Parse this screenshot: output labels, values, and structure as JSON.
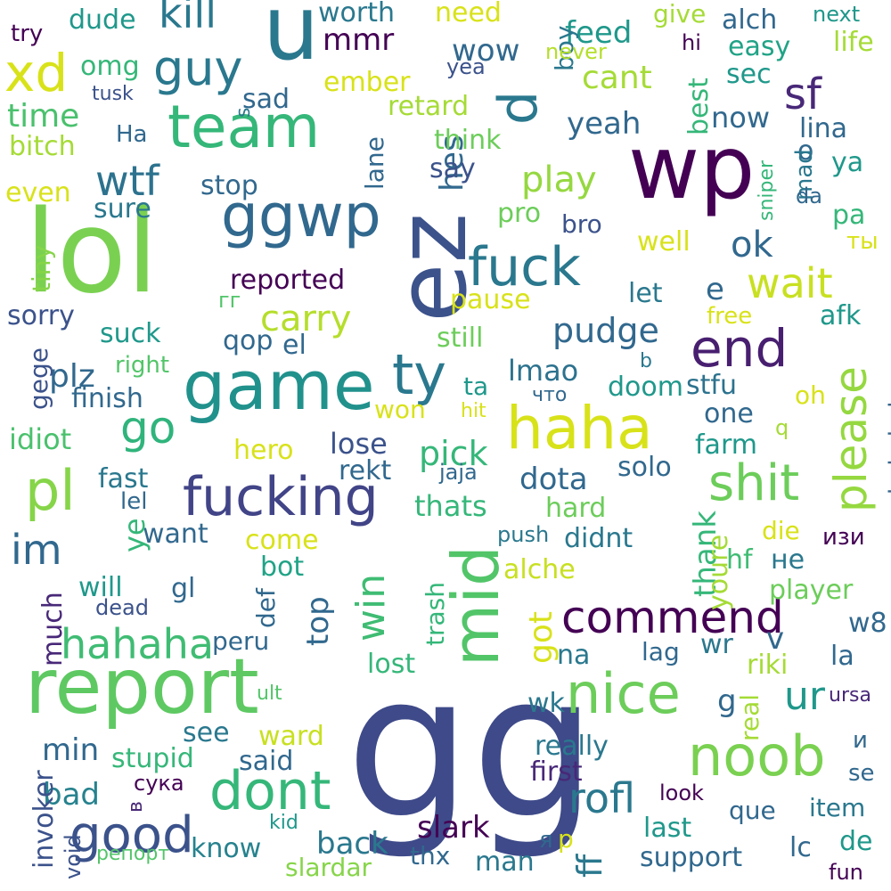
{
  "words": [
    {
      "text": "gg",
      "color": "#3e4a89",
      "vertical": false
    },
    {
      "text": "lol",
      "color": "#7ad151",
      "vertical": false
    },
    {
      "text": "wp",
      "color": "#440154",
      "vertical": false
    },
    {
      "text": "ez",
      "color": "#3b528b",
      "vertical": true
    },
    {
      "text": "report",
      "color": "#5ec962",
      "vertical": false
    },
    {
      "text": "game",
      "color": "#21918c",
      "vertical": false
    },
    {
      "text": "u",
      "color": "#2a788e",
      "vertical": false
    },
    {
      "text": "ggwp",
      "color": "#31688e",
      "vertical": false
    },
    {
      "text": "team",
      "color": "#35b779",
      "vertical": false
    },
    {
      "text": "haha",
      "color": "#d8e219",
      "vertical": false
    },
    {
      "text": "mid",
      "color": "#52c569",
      "vertical": true
    },
    {
      "text": "fucking",
      "color": "#414487",
      "vertical": false
    },
    {
      "text": "noob",
      "color": "#7ad151",
      "vertical": false
    },
    {
      "text": "nice",
      "color": "#6ccd5a",
      "vertical": false
    },
    {
      "text": "fuck",
      "color": "#2a788e",
      "vertical": false
    },
    {
      "text": "commend",
      "color": "#440154",
      "vertical": false
    },
    {
      "text": "ty",
      "color": "#2a788e",
      "vertical": false
    },
    {
      "text": "xd",
      "color": "#d8e219",
      "vertical": false
    },
    {
      "text": "pl",
      "color": "#86d549",
      "vertical": false
    },
    {
      "text": "end",
      "color": "#481f70",
      "vertical": false
    },
    {
      "text": "d",
      "color": "#2a788e",
      "vertical": true
    },
    {
      "text": "dont",
      "color": "#35b779",
      "vertical": false
    },
    {
      "text": "good",
      "color": "#3b528b",
      "vertical": false
    },
    {
      "text": "shit",
      "color": "#6ccd5a",
      "vertical": false
    },
    {
      "text": "please",
      "color": "#95d840",
      "vertical": true
    },
    {
      "text": "guy",
      "color": "#2a788e",
      "vertical": false
    },
    {
      "text": "go",
      "color": "#2fb47c",
      "vertical": false
    },
    {
      "text": "sf",
      "color": "#482878",
      "vertical": false
    },
    {
      "text": "wtf",
      "color": "#2c728e",
      "vertical": false
    },
    {
      "text": "im",
      "color": "#31688e",
      "vertical": false
    },
    {
      "text": "rofl",
      "color": "#2a788e",
      "vertical": false
    },
    {
      "text": "wait",
      "color": "#c8e020",
      "vertical": false
    },
    {
      "text": "hahaha",
      "color": "#3fbc73",
      "vertical": false
    },
    {
      "text": "kill",
      "color": "#2a788e",
      "vertical": false
    },
    {
      "text": "win",
      "color": "#3fbc73",
      "vertical": true
    },
    {
      "text": "carry",
      "color": "#b5de2b",
      "vertical": false
    },
    {
      "text": "pick",
      "color": "#35b779",
      "vertical": false
    },
    {
      "text": "play",
      "color": "#95d840",
      "vertical": false
    },
    {
      "text": "ur",
      "color": "#1f988b",
      "vertical": false
    },
    {
      "text": "ok",
      "color": "#31688e",
      "vertical": false
    },
    {
      "text": "pudge",
      "color": "#31688e",
      "vertical": false
    },
    {
      "text": "plz",
      "color": "#31688e",
      "vertical": false
    },
    {
      "text": "dota",
      "color": "#31688e",
      "vertical": false
    },
    {
      "text": "cant",
      "color": "#a5db36",
      "vertical": false
    },
    {
      "text": "time",
      "color": "#4ac16d",
      "vertical": false
    },
    {
      "text": "feed",
      "color": "#1f988b",
      "vertical": false
    },
    {
      "text": "ff",
      "color": "#2a788e",
      "vertical": true
    },
    {
      "text": "back",
      "color": "#2a788e",
      "vertical": false
    },
    {
      "text": "slark",
      "color": "#440154",
      "vertical": false
    },
    {
      "text": "yeah",
      "color": "#31688e",
      "vertical": false
    },
    {
      "text": "mmr",
      "color": "#440154",
      "vertical": false
    },
    {
      "text": "now",
      "color": "#31688e",
      "vertical": false
    },
    {
      "text": "lose",
      "color": "#3b528b",
      "vertical": false
    },
    {
      "text": "lmao",
      "color": "#2c728e",
      "vertical": false
    },
    {
      "text": "idiot",
      "color": "#4ac16d",
      "vertical": false
    },
    {
      "text": "got",
      "color": "#d8e219",
      "vertical": true
    },
    {
      "text": "min",
      "color": "#31688e",
      "vertical": false
    },
    {
      "text": "know",
      "color": "#26828e",
      "vertical": false
    },
    {
      "text": "bad",
      "color": "#26828e",
      "vertical": false
    },
    {
      "text": "support",
      "color": "#31688e",
      "vertical": false
    },
    {
      "text": "thats",
      "color": "#35b779",
      "vertical": false
    },
    {
      "text": "stfu",
      "color": "#2c728e",
      "vertical": false
    },
    {
      "text": "wow",
      "color": "#31688e",
      "vertical": false
    },
    {
      "text": "e",
      "color": "#31688e",
      "vertical": false
    },
    {
      "text": "v",
      "color": "#31688e",
      "vertical": false
    },
    {
      "text": "g",
      "color": "#31688e",
      "vertical": false
    },
    {
      "text": "dude",
      "color": "#1f988b",
      "vertical": false
    },
    {
      "text": "reported",
      "color": "#440154",
      "vertical": false
    },
    {
      "text": "top",
      "color": "#31688e",
      "vertical": true
    },
    {
      "text": "farm",
      "color": "#1f988b",
      "vertical": false
    },
    {
      "text": "easy",
      "color": "#20a386",
      "vertical": false
    },
    {
      "text": "alch",
      "color": "#31688e",
      "vertical": false
    },
    {
      "text": "sorry",
      "color": "#3b528b",
      "vertical": false
    },
    {
      "text": "suck",
      "color": "#1f988b",
      "vertical": false
    },
    {
      "text": "retard",
      "color": "#a5db36",
      "vertical": false
    },
    {
      "text": "stop",
      "color": "#31688e",
      "vertical": false
    },
    {
      "text": "come",
      "color": "#d8e219",
      "vertical": false
    },
    {
      "text": "want",
      "color": "#31688e",
      "vertical": false
    },
    {
      "text": "sad",
      "color": "#31688e",
      "vertical": false
    },
    {
      "text": "worth",
      "color": "#2a788e",
      "vertical": false
    },
    {
      "text": "need",
      "color": "#d8e219",
      "vertical": false
    },
    {
      "text": "ember",
      "color": "#d8e219",
      "vertical": false
    },
    {
      "text": "omg",
      "color": "#35b779",
      "vertical": false
    },
    {
      "text": "bitch",
      "color": "#a5db36",
      "vertical": false
    },
    {
      "text": "even",
      "color": "#d8e219",
      "vertical": false
    },
    {
      "text": "sure",
      "color": "#2a788e",
      "vertical": false
    },
    {
      "text": "hes",
      "color": "#31688e",
      "vertical": true
    },
    {
      "text": "think",
      "color": "#6ccd5a",
      "vertical": false
    },
    {
      "text": "say",
      "color": "#3b528b",
      "vertical": false
    },
    {
      "text": "pro",
      "color": "#6ccd5a",
      "vertical": false
    },
    {
      "text": "bro",
      "color": "#3b528b",
      "vertical": false
    },
    {
      "text": "well",
      "color": "#d8e219",
      "vertical": false
    },
    {
      "text": "let",
      "color": "#2a788e",
      "vertical": false
    },
    {
      "text": "afk",
      "color": "#1f988b",
      "vertical": false
    },
    {
      "text": "pause",
      "color": "#d8e219",
      "vertical": false
    },
    {
      "text": "still",
      "color": "#6ccd5a",
      "vertical": false
    },
    {
      "text": "one",
      "color": "#31688e",
      "vertical": false
    },
    {
      "text": "doom",
      "color": "#1f988b",
      "vertical": false
    },
    {
      "text": "oh",
      "color": "#d8e219",
      "vertical": false
    },
    {
      "text": "ta",
      "color": "#1f988b",
      "vertical": false
    },
    {
      "text": "finish",
      "color": "#31688e",
      "vertical": false
    },
    {
      "text": "hero",
      "color": "#d8e219",
      "vertical": false
    },
    {
      "text": "won",
      "color": "#d8e219",
      "vertical": false
    },
    {
      "text": "fast",
      "color": "#2a788e",
      "vertical": false
    },
    {
      "text": "rekt",
      "color": "#31688e",
      "vertical": false
    },
    {
      "text": "solo",
      "color": "#31688e",
      "vertical": false
    },
    {
      "text": "thank",
      "color": "#35b779",
      "vertical": true
    },
    {
      "text": "youre",
      "color": "#a5db36",
      "vertical": true
    },
    {
      "text": "hahahaha",
      "color": "#31688e",
      "vertical": true
    },
    {
      "text": "gege",
      "color": "#3b528b",
      "vertical": true
    },
    {
      "text": "ye",
      "color": "#35b779",
      "vertical": true
    },
    {
      "text": "lel",
      "color": "#31688e",
      "vertical": false
    },
    {
      "text": "will",
      "color": "#1f988b",
      "vertical": false
    },
    {
      "text": "gl",
      "color": "#31688e",
      "vertical": false
    },
    {
      "text": "def",
      "color": "#31688e",
      "vertical": true
    },
    {
      "text": "bot",
      "color": "#20a386",
      "vertical": false
    },
    {
      "text": "much",
      "color": "#482878",
      "vertical": true
    },
    {
      "text": "dead",
      "color": "#3b528b",
      "vertical": false
    },
    {
      "text": "peru",
      "color": "#31688e",
      "vertical": false
    },
    {
      "text": "trash",
      "color": "#35b779",
      "vertical": true
    },
    {
      "text": "lost",
      "color": "#35b779",
      "vertical": false
    },
    {
      "text": "alche",
      "color": "#c8e020",
      "vertical": false
    },
    {
      "text": "hard",
      "color": "#6ccd5a",
      "vertical": false
    },
    {
      "text": "didnt",
      "color": "#2a788e",
      "vertical": false
    },
    {
      "text": "na",
      "color": "#2a788e",
      "vertical": false
    },
    {
      "text": "lag",
      "color": "#31688e",
      "vertical": false
    },
    {
      "text": "wr",
      "color": "#2a788e",
      "vertical": false
    },
    {
      "text": "hf",
      "color": "#3fbc73",
      "vertical": false
    },
    {
      "text": "die",
      "color": "#d8e219",
      "vertical": false
    },
    {
      "text": "player",
      "color": "#6ccd5a",
      "vertical": false
    },
    {
      "text": "w8",
      "color": "#31688e",
      "vertical": false
    },
    {
      "text": "la",
      "color": "#31688e",
      "vertical": false
    },
    {
      "text": "riki",
      "color": "#a5db36",
      "vertical": false
    },
    {
      "text": "real",
      "color": "#a5db36",
      "vertical": true
    },
    {
      "text": "ursa",
      "color": "#482878",
      "vertical": false
    },
    {
      "text": "wk",
      "color": "#2a788e",
      "vertical": false
    },
    {
      "text": "really",
      "color": "#2a788e",
      "vertical": false
    },
    {
      "text": "first",
      "color": "#482878",
      "vertical": false
    },
    {
      "text": "see",
      "color": "#2a788e",
      "vertical": false
    },
    {
      "text": "ward",
      "color": "#c8e020",
      "vertical": false
    },
    {
      "text": "stupid",
      "color": "#35b779",
      "vertical": false
    },
    {
      "text": "said",
      "color": "#31688e",
      "vertical": false
    },
    {
      "text": "invoker",
      "color": "#3b528b",
      "vertical": true
    },
    {
      "text": "void",
      "color": "#3b528b",
      "vertical": true
    },
    {
      "text": "kid",
      "color": "#1f988b",
      "vertical": false
    },
    {
      "text": "thx",
      "color": "#31688e",
      "vertical": false
    },
    {
      "text": "man",
      "color": "#2a788e",
      "vertical": false
    },
    {
      "text": "slardar",
      "color": "#86d549",
      "vertical": false
    },
    {
      "text": "p",
      "color": "#d8e219",
      "vertical": false
    },
    {
      "text": "look",
      "color": "#440154",
      "vertical": false
    },
    {
      "text": "que",
      "color": "#31688e",
      "vertical": false
    },
    {
      "text": "item",
      "color": "#2a788e",
      "vertical": false
    },
    {
      "text": "last",
      "color": "#1f988b",
      "vertical": false
    },
    {
      "text": "lc",
      "color": "#31688e",
      "vertical": false
    },
    {
      "text": "de",
      "color": "#1f988b",
      "vertical": false
    },
    {
      "text": "fun",
      "color": "#440154",
      "vertical": false
    },
    {
      "text": "se",
      "color": "#31688e",
      "vertical": false
    },
    {
      "text": "try",
      "color": "#440154",
      "vertical": false
    },
    {
      "text": "tusk",
      "color": "#3b528b",
      "vertical": false
    },
    {
      "text": "yea",
      "color": "#3b528b",
      "vertical": false
    },
    {
      "text": "boy",
      "color": "#2a788e",
      "vertical": true
    },
    {
      "text": "never",
      "color": "#b5de2b",
      "vertical": false
    },
    {
      "text": "give",
      "color": "#a5db36",
      "vertical": false
    },
    {
      "text": "next",
      "color": "#1f988b",
      "vertical": false
    },
    {
      "text": "life",
      "color": "#a5db36",
      "vertical": false
    },
    {
      "text": "hi",
      "color": "#440154",
      "vertical": false
    },
    {
      "text": "sec",
      "color": "#1f988b",
      "vertical": false
    },
    {
      "text": "best",
      "color": "#35b779",
      "vertical": true
    },
    {
      "text": "lina",
      "color": "#31688e",
      "vertical": false
    },
    {
      "text": "o",
      "color": "#31688e",
      "vertical": false
    },
    {
      "text": "ya",
      "color": "#1f988b",
      "vertical": false
    },
    {
      "text": "mad",
      "color": "#2a788e",
      "vertical": true
    },
    {
      "text": "sniper",
      "color": "#35b779",
      "vertical": true
    },
    {
      "text": "da",
      "color": "#31688e",
      "vertical": false
    },
    {
      "text": "pa",
      "color": "#35b779",
      "vertical": false
    },
    {
      "text": "ты",
      "color": "#d8e219",
      "vertical": false
    },
    {
      "text": "tiny",
      "color": "#86d549",
      "vertical": true
    },
    {
      "text": "lane",
      "color": "#31688e",
      "vertical": true
    },
    {
      "text": "s",
      "color": "#2a788e",
      "vertical": true
    },
    {
      "text": "На",
      "color": "#31688e",
      "vertical": false
    },
    {
      "text": "гг",
      "color": "#52c569",
      "vertical": false
    },
    {
      "text": "qop",
      "color": "#31688e",
      "vertical": false
    },
    {
      "text": "el",
      "color": "#31688e",
      "vertical": false
    },
    {
      "text": "right",
      "color": "#52c569",
      "vertical": false
    },
    {
      "text": "free",
      "color": "#d8e219",
      "vertical": false
    },
    {
      "text": "b",
      "color": "#2a788e",
      "vertical": false
    },
    {
      "text": "что",
      "color": "#31688e",
      "vertical": false
    },
    {
      "text": "hit",
      "color": "#d8e219",
      "vertical": false
    },
    {
      "text": "q",
      "color": "#a5db36",
      "vertical": false
    },
    {
      "text": "jaja",
      "color": "#31688e",
      "vertical": false
    },
    {
      "text": "push",
      "color": "#2a788e",
      "vertical": false
    },
    {
      "text": "изи",
      "color": "#440154",
      "vertical": false
    },
    {
      "text": "не",
      "color": "#2a788e",
      "vertical": false
    },
    {
      "text": "и",
      "color": "#31688e",
      "vertical": false
    },
    {
      "text": "ult",
      "color": "#52c569",
      "vertical": false
    },
    {
      "text": "сука",
      "color": "#440154",
      "vertical": false
    },
    {
      "text": "в",
      "color": "#482878",
      "vertical": true
    },
    {
      "text": "я",
      "color": "#31688e",
      "vertical": false
    },
    {
      "text": "репорт",
      "color": "#52c569",
      "vertical": false
    }
  ]
}
